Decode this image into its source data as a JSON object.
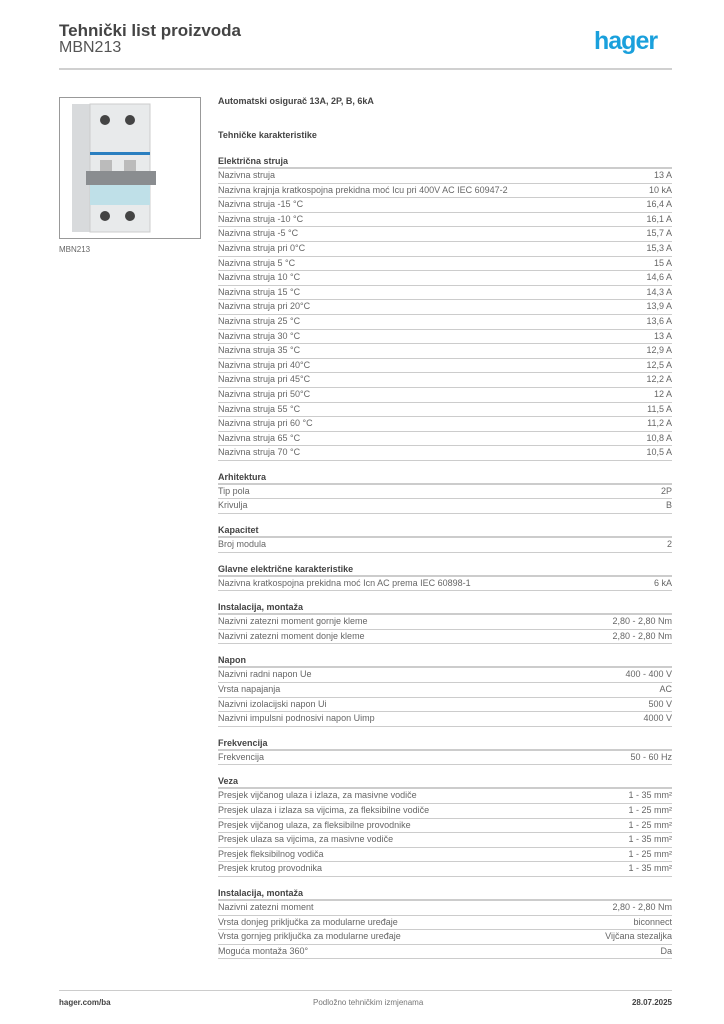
{
  "header": {
    "title": "Tehnički list proizvoda",
    "code": "MBN213",
    "logo": "hager",
    "brand_color": "#1aa0dc"
  },
  "product": {
    "image_caption": "MBN213",
    "name": "Automatski osigurač  13A, 2P, B, 6kA",
    "subtitle": "Tehničke karakteristike"
  },
  "sections": [
    {
      "title": "Električna struja",
      "rows": [
        [
          "Nazivna struja",
          "13 A"
        ],
        [
          "Nazivna krajnja kratkospojna prekidna moć Icu pri 400V AC IEC 60947-2",
          "10 kA"
        ],
        [
          "Nazivna struja -15 °C",
          "16,4 A"
        ],
        [
          "Nazivna struja -10 °C",
          "16,1 A"
        ],
        [
          "Nazivna struja -5 °C",
          "15,7 A"
        ],
        [
          "Nazivna struja pri 0°C",
          "15,3 A"
        ],
        [
          "Nazivna struja 5 °C",
          "15 A"
        ],
        [
          "Nazivna struja 10 °C",
          "14,6 A"
        ],
        [
          "Nazivna struja 15 °C",
          "14,3 A"
        ],
        [
          "Nazivna struja pri 20°C",
          "13,9 A"
        ],
        [
          "Nazivna struja 25 °C",
          "13,6 A"
        ],
        [
          "Nazivna struja 30 °C",
          "13 A"
        ],
        [
          "Nazivna struja 35 °C",
          "12,9 A"
        ],
        [
          "Nazivna struja pri 40°C",
          "12,5 A"
        ],
        [
          "Nazivna struja pri 45°C",
          "12,2 A"
        ],
        [
          "Nazivna struja pri 50°C",
          "12 A"
        ],
        [
          "Nazivna struja 55 °C",
          "11,5 A"
        ],
        [
          "Nazivna struja pri 60 °C",
          "11,2 A"
        ],
        [
          "Nazivna struja 65 °C",
          "10,8 A"
        ],
        [
          "Nazivna struja 70 °C",
          "10,5 A"
        ]
      ]
    },
    {
      "title": "Arhitektura",
      "rows": [
        [
          "Tip pola",
          "2P"
        ],
        [
          "Krivulja",
          "B"
        ]
      ]
    },
    {
      "title": "Kapacitet",
      "rows": [
        [
          "Broj modula",
          "2"
        ]
      ]
    },
    {
      "title": "Glavne električne karakteristike",
      "rows": [
        [
          "Nazivna kratkospojna prekidna moć Icn AC prema IEC 60898-1",
          "6 kA"
        ]
      ]
    },
    {
      "title": "Instalacija, montaža",
      "rows": [
        [
          "Nazivni zatezni moment gornje kleme",
          "2,80 - 2,80 Nm"
        ],
        [
          "Nazivni zatezni moment donje kleme",
          "2,80 - 2,80 Nm"
        ]
      ]
    },
    {
      "title": "Napon",
      "rows": [
        [
          "Nazivni radni napon Ue",
          "400 - 400 V"
        ],
        [
          "Vrsta napajanja",
          "AC"
        ],
        [
          "Nazivni izolacijski napon Ui",
          "500 V"
        ],
        [
          "Nazivni impulsni podnosivi napon Uimp",
          "4000 V"
        ]
      ]
    },
    {
      "title": "Frekvencija",
      "rows": [
        [
          "Frekvencija",
          "50 - 60 Hz"
        ]
      ]
    },
    {
      "title": "Veza",
      "rows": [
        [
          "Presjek vijčanog ulaza i izlaza, za masivne vodiče",
          "1 - 35 mm²"
        ],
        [
          "Presjek ulaza i izlaza sa vijcima, za fleksibilne vodiče",
          "1 - 25 mm²"
        ],
        [
          "Presjek vijčanog ulaza, za fleksibilne provodnike",
          "1 - 25 mm²"
        ],
        [
          "Presjek ulaza sa vijcima, za masivne vodiče",
          "1 - 35 mm²"
        ],
        [
          "Presjek fleksibilnog vodiča",
          "1 - 25 mm²"
        ],
        [
          "Presjek krutog provodnika",
          "1 - 35 mm²"
        ]
      ]
    },
    {
      "title": "Instalacija, montaža",
      "rows": [
        [
          "Nazivni zatezni moment",
          "2,80 - 2,80 Nm"
        ],
        [
          "Vrsta donjeg priključka za modularne uređaje",
          "biconnect"
        ],
        [
          "Vrsta gornjeg priključka za modularne uređaje",
          "Vijčana stezaljka"
        ],
        [
          "Moguća montaža 360°",
          "Da"
        ]
      ]
    }
  ],
  "footer": {
    "website": "hager.com/ba",
    "note": "Podložno tehničkim izmjenama",
    "date": "28.07.2025"
  }
}
